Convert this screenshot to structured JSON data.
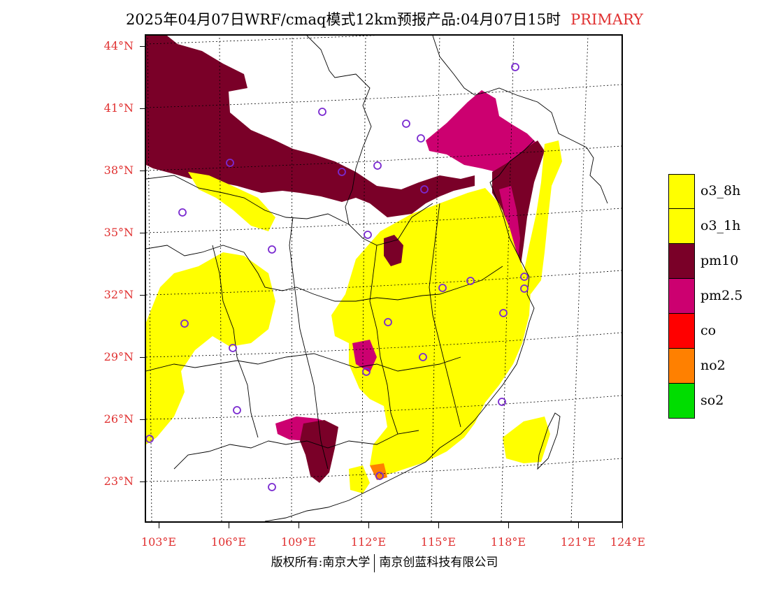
{
  "header": {
    "title": "2025年04月07日WRF/cmaq模式12km预报产品:04月07日15时",
    "tag": "PRIMARY"
  },
  "axes": {
    "lat_labels": [
      "44°N",
      "41°N",
      "38°N",
      "35°N",
      "32°N",
      "29°N",
      "26°N",
      "23°N"
    ],
    "lon_labels": [
      "103°E",
      "106°E",
      "109°E",
      "112°E",
      "115°E",
      "118°E",
      "121°E",
      "124°E"
    ]
  },
  "legend": {
    "items": [
      {
        "label": "o3_8h",
        "color": "#ffff00"
      },
      {
        "label": "o3_1h",
        "color": "#ffff00"
      },
      {
        "label": "pm10",
        "color": "#7a0028"
      },
      {
        "label": "pm2.5",
        "color": "#cc0070"
      },
      {
        "label": "co",
        "color": "#ff0000"
      },
      {
        "label": "no2",
        "color": "#ff8000"
      },
      {
        "label": "so2",
        "color": "#00dd00"
      }
    ]
  },
  "colors": {
    "pm10": "#7a0028",
    "pm25": "#cc0070",
    "o3": "#ffff00",
    "no2": "#ff8000",
    "station_marker": "#7a2ad0",
    "boundary": "#000000",
    "grid": "#000000"
  },
  "footer": {
    "copyright_left": "版权所有:南京大学",
    "copyright_right": "南京创蓝科技有限公司"
  }
}
